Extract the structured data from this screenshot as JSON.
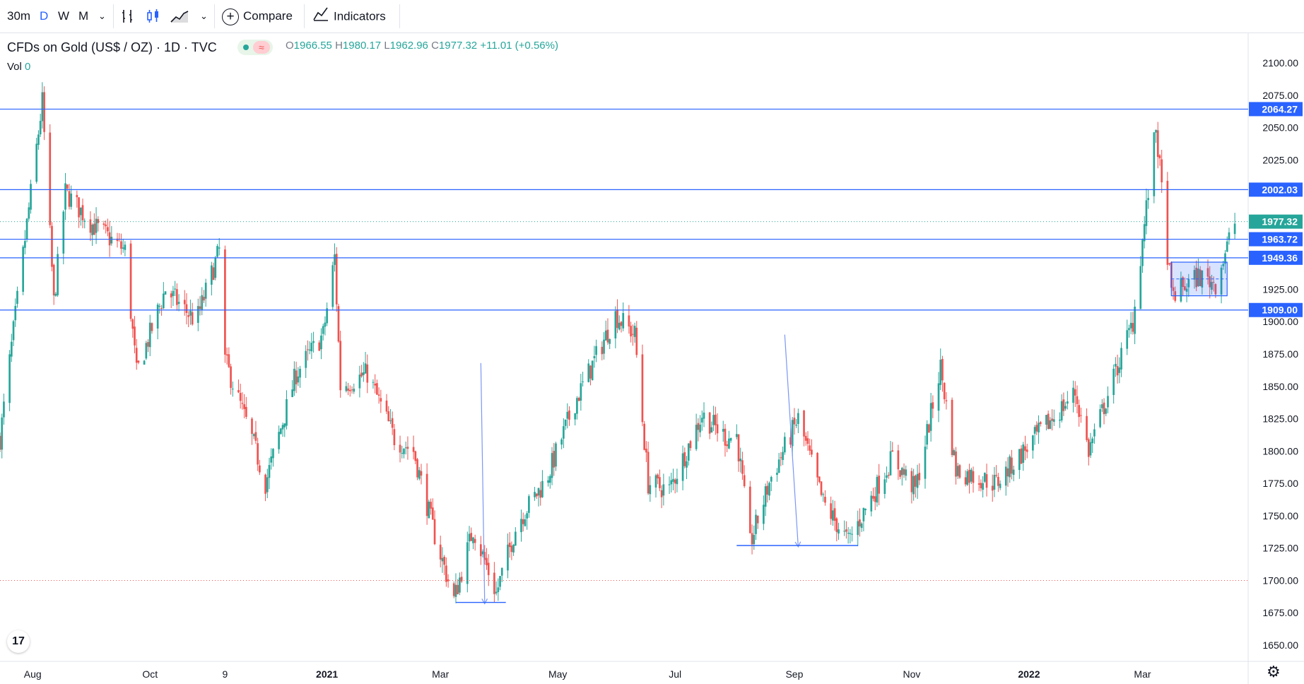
{
  "toolbar": {
    "interval": "30m",
    "d": "D",
    "w": "W",
    "m": "M",
    "compare": "Compare",
    "indicators": "Indicators"
  },
  "header": {
    "symbol": "CFDs on Gold (US$ / OZ) · 1D · TVC",
    "o_label": "O",
    "o": "1966.55",
    "h_label": "H",
    "h": "1980.17",
    "l_label": "L",
    "l": "1962.96",
    "c_label": "C",
    "c": "1977.32",
    "change": "+11.01 (+0.56%)",
    "vol_label": "Vol",
    "vol": "0"
  },
  "colors": {
    "up": "#26a69a",
    "down": "#ef5350",
    "hline": "#2962ff",
    "arrow": "#7b97f5"
  },
  "chart_data": {
    "type": "candlestick",
    "title": "CFDs on Gold (US$ / OZ) · 1D · TVC",
    "ylim": [
      1640,
      2110
    ],
    "y_ticks": [
      1650,
      1675,
      1700,
      1725,
      1750,
      1775,
      1800,
      1825,
      1850,
      1875,
      1900,
      1925,
      1950,
      1975,
      2000,
      2025,
      2050,
      2075,
      2100
    ],
    "x_ticks": [
      "Aug",
      "Oct",
      "9",
      "2021",
      "Mar",
      "May",
      "Jul",
      "Sep",
      "Nov",
      "2022",
      "Mar"
    ],
    "x_range": [
      "2020-07-15",
      "2022-04-22"
    ],
    "tick_dates": [
      "2020-08-01",
      "2020-10-01",
      "2020-11-09",
      "2021-01-01",
      "2021-03-01",
      "2021-05-01",
      "2021-07-01",
      "2021-09-01",
      "2021-11-01",
      "2022-01-01",
      "2022-03-01"
    ],
    "last_price": 1977.32,
    "horizontal_lines": [
      2064.27,
      2002.03,
      1963.72,
      1949.36,
      1909.0
    ],
    "dotted_lines": [
      1977.32,
      1700
    ],
    "path": [
      {
        "date": "2020-07-15",
        "price": 1810
      },
      {
        "date": "2020-08-06",
        "price": 2070
      },
      {
        "date": "2020-08-12",
        "price": 1915
      },
      {
        "date": "2020-08-18",
        "price": 2000
      },
      {
        "date": "2020-09-01",
        "price": 1975
      },
      {
        "date": "2020-09-18",
        "price": 1955
      },
      {
        "date": "2020-09-24",
        "price": 1860
      },
      {
        "date": "2020-10-09",
        "price": 1925
      },
      {
        "date": "2020-10-25",
        "price": 1900
      },
      {
        "date": "2020-11-06",
        "price": 1955
      },
      {
        "date": "2020-11-09",
        "price": 1870
      },
      {
        "date": "2020-11-24",
        "price": 1805
      },
      {
        "date": "2020-11-30",
        "price": 1775
      },
      {
        "date": "2020-12-16",
        "price": 1860
      },
      {
        "date": "2020-12-30",
        "price": 1890
      },
      {
        "date": "2021-01-05",
        "price": 1950
      },
      {
        "date": "2021-01-08",
        "price": 1850
      },
      {
        "date": "2021-01-22",
        "price": 1860
      },
      {
        "date": "2021-02-05",
        "price": 1810
      },
      {
        "date": "2021-02-15",
        "price": 1800
      },
      {
        "date": "2021-02-26",
        "price": 1735
      },
      {
        "date": "2021-03-08",
        "price": 1685
      },
      {
        "date": "2021-03-18",
        "price": 1740
      },
      {
        "date": "2021-03-30",
        "price": 1690
      },
      {
        "date": "2021-04-10",
        "price": 1745
      },
      {
        "date": "2021-04-25",
        "price": 1778
      },
      {
        "date": "2021-05-10",
        "price": 1838
      },
      {
        "date": "2021-05-31",
        "price": 1905
      },
      {
        "date": "2021-06-10",
        "price": 1890
      },
      {
        "date": "2021-06-17",
        "price": 1775
      },
      {
        "date": "2021-06-28",
        "price": 1770
      },
      {
        "date": "2021-07-15",
        "price": 1828
      },
      {
        "date": "2021-07-28",
        "price": 1810
      },
      {
        "date": "2021-08-02",
        "price": 1812
      },
      {
        "date": "2021-08-09",
        "price": 1728
      },
      {
        "date": "2021-08-20",
        "price": 1780
      },
      {
        "date": "2021-09-03",
        "price": 1825
      },
      {
        "date": "2021-09-16",
        "price": 1760
      },
      {
        "date": "2021-09-29",
        "price": 1730
      },
      {
        "date": "2021-10-22",
        "price": 1795
      },
      {
        "date": "2021-11-03",
        "price": 1770
      },
      {
        "date": "2021-11-16",
        "price": 1865
      },
      {
        "date": "2021-11-24",
        "price": 1785
      },
      {
        "date": "2021-12-15",
        "price": 1775
      },
      {
        "date": "2022-01-04",
        "price": 1810
      },
      {
        "date": "2022-01-25",
        "price": 1845
      },
      {
        "date": "2022-02-01",
        "price": 1800
      },
      {
        "date": "2022-02-24",
        "price": 1900
      },
      {
        "date": "2022-03-08",
        "price": 2050
      },
      {
        "date": "2022-03-16",
        "price": 1920
      },
      {
        "date": "2022-03-30",
        "price": 1935
      },
      {
        "date": "2022-04-08",
        "price": 1930
      },
      {
        "date": "2022-04-18",
        "price": 1977
      }
    ]
  }
}
